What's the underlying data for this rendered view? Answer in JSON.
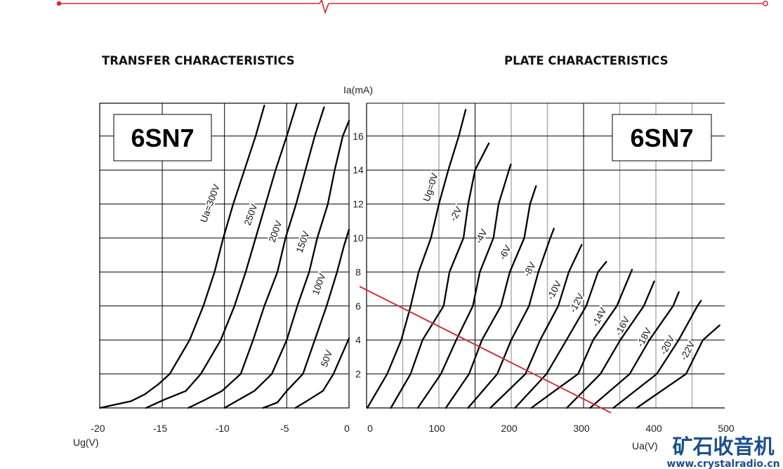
{
  "colors": {
    "accent_red": "#d8262e",
    "load_line": "#c8323a",
    "grid_black": "#000000",
    "grid_gray": "#a8a8a8",
    "watermark": "#1d4f8c"
  },
  "watermark": {
    "cn": "矿石收音机",
    "url": "www.crystalradio.cn"
  },
  "chart_data": [
    {
      "type": "line",
      "title": "TRANSFER CHARACTERISTICS",
      "badge": "6SN7",
      "xlabel": "Ug(V)",
      "ylabel": "Ia(mA)",
      "xlim": [
        -20,
        0
      ],
      "ylim": [
        0,
        18
      ],
      "xticks": [
        "-20",
        "-15",
        "-10",
        "-5",
        "0"
      ],
      "xtick_values": [
        -20,
        -15,
        -10,
        -5,
        0
      ],
      "grid": true,
      "series": [
        {
          "name": "Ua=300V",
          "points": [
            [
              -20,
              0
            ],
            [
              -17.5,
              0.4
            ],
            [
              -16.4,
              0.8
            ],
            [
              -15.3,
              1.4
            ],
            [
              -14.4,
              2
            ],
            [
              -12.8,
              4
            ],
            [
              -11.7,
              6
            ],
            [
              -10.8,
              8
            ],
            [
              -10.1,
              10
            ],
            [
              -9.3,
              12
            ],
            [
              -8.4,
              14
            ],
            [
              -7.5,
              16
            ],
            [
              -6.8,
              17.8
            ]
          ]
        },
        {
          "name": "250V",
          "points": [
            [
              -16.3,
              0
            ],
            [
              -14.8,
              0.5
            ],
            [
              -13.1,
              1
            ],
            [
              -11.9,
              2
            ],
            [
              -10.3,
              4
            ],
            [
              -9.2,
              6
            ],
            [
              -8.3,
              8
            ],
            [
              -7.5,
              10
            ],
            [
              -6.7,
              12
            ],
            [
              -5.9,
              14
            ],
            [
              -5.0,
              16
            ],
            [
              -4.2,
              17.9
            ]
          ]
        },
        {
          "name": "200V",
          "points": [
            [
              -12.9,
              0
            ],
            [
              -11.5,
              0.5
            ],
            [
              -10.2,
              1
            ],
            [
              -8.7,
              2
            ],
            [
              -7.7,
              4
            ],
            [
              -6.8,
              6
            ],
            [
              -5.75,
              8
            ],
            [
              -5.1,
              10
            ],
            [
              -4.25,
              12
            ],
            [
              -3.5,
              14
            ],
            [
              -2.75,
              16
            ],
            [
              -2.0,
              17.7
            ]
          ]
        },
        {
          "name": "150V",
          "points": [
            [
              -10.0,
              0
            ],
            [
              -8.8,
              0.5
            ],
            [
              -7.6,
              1
            ],
            [
              -6.2,
              2
            ],
            [
              -5.0,
              4
            ],
            [
              -4.15,
              6
            ],
            [
              -3.2,
              8
            ],
            [
              -2.55,
              10
            ],
            [
              -1.7,
              12
            ],
            [
              -1.15,
              14
            ],
            [
              -0.5,
              16
            ],
            [
              0,
              16.9
            ]
          ]
        },
        {
          "name": "100V",
          "points": [
            [
              -6.9,
              0
            ],
            [
              -5.75,
              0.32
            ],
            [
              -5.0,
              1
            ],
            [
              -3.7,
              2
            ],
            [
              -2.75,
              4
            ],
            [
              -1.8,
              6
            ],
            [
              -0.96,
              8
            ],
            [
              -0.4,
              9.55
            ],
            [
              0,
              10.5
            ]
          ]
        },
        {
          "name": "50V",
          "points": [
            [
              -4.3,
              0
            ],
            [
              -3.4,
              0.4
            ],
            [
              -2.1,
              1
            ],
            [
              -1.25,
              2
            ],
            [
              0,
              4.1
            ]
          ]
        }
      ]
    },
    {
      "type": "line",
      "title": "PLATE CHARACTERISTICS",
      "badge": "6SN7",
      "xlabel": "Ua(V)",
      "ylabel": "Ia(mA)",
      "xlim": [
        0,
        500
      ],
      "ylim": [
        0,
        18
      ],
      "xticks": [
        "0",
        "100",
        "200",
        "300",
        "400",
        "500"
      ],
      "xtick_values": [
        0,
        100,
        200,
        300,
        400,
        500
      ],
      "yticks": [
        "2",
        "4",
        "6",
        "8",
        "10",
        "12",
        "14",
        "16"
      ],
      "ytick_values": [
        2,
        4,
        6,
        8,
        10,
        12,
        14,
        16
      ],
      "grid": true,
      "series": [
        {
          "name": "Ug=0V",
          "points": [
            [
              1,
              0
            ],
            [
              28.5,
              2
            ],
            [
              48,
              4
            ],
            [
              61,
              6
            ],
            [
              72,
              8
            ],
            [
              89,
              10
            ],
            [
              100,
              12
            ],
            [
              113,
              14
            ],
            [
              127.5,
              16
            ],
            [
              137,
              17.55
            ]
          ]
        },
        {
          "name": "-2V",
          "points": [
            [
              33.6,
              0
            ],
            [
              60.8,
              2
            ],
            [
              77.4,
              4
            ],
            [
              106.5,
              6
            ],
            [
              114.6,
              8
            ],
            [
              134,
              10
            ],
            [
              140.5,
              12
            ],
            [
              150,
              14
            ],
            [
              169,
              15.57
            ]
          ]
        },
        {
          "name": "-4V",
          "points": [
            [
              70.8,
              0
            ],
            [
              102.8,
              2
            ],
            [
              124,
              4
            ],
            [
              147,
              6
            ],
            [
              156.6,
              8
            ],
            [
              175.4,
              10
            ],
            [
              182.5,
              12
            ],
            [
              199.3,
              14.33
            ]
          ]
        },
        {
          "name": "-6V",
          "points": [
            [
              109.6,
              0
            ],
            [
              141.7,
              2
            ],
            [
              159.5,
              4
            ],
            [
              185.8,
              6
            ],
            [
              198,
              8
            ],
            [
              218,
              10
            ],
            [
              226,
              12
            ],
            [
              234.3,
              13.06
            ]
          ]
        },
        {
          "name": "-8V",
          "points": [
            [
              140.3,
              0
            ],
            [
              180.7,
              2
            ],
            [
              200,
              4
            ],
            [
              224.6,
              6
            ],
            [
              237.5,
              8
            ],
            [
              254,
              10
            ],
            [
              259,
              10.55
            ]
          ]
        },
        {
          "name": "-10V",
          "points": [
            [
              171.1,
              0
            ],
            [
              219.7,
              2
            ],
            [
              240,
              4
            ],
            [
              265,
              6
            ],
            [
              279.6,
              8
            ],
            [
              297.4,
              9.6
            ]
          ]
        },
        {
          "name": "-12V",
          "points": [
            [
              205.2,
              0
            ],
            [
              248.8,
              2
            ],
            [
              276.4,
              4
            ],
            [
              303.7,
              6
            ],
            [
              320,
              8
            ],
            [
              331.4,
              8.6
            ]
          ]
        },
        {
          "name": "-14V",
          "points": [
            [
              227.8,
              0
            ],
            [
              260,
              1
            ],
            [
              292.5,
              2
            ],
            [
              313.3,
              4
            ],
            [
              346,
              6
            ],
            [
              367,
              8.14
            ]
          ]
        },
        {
          "name": "-16V",
          "points": [
            [
              276.8,
              0
            ],
            [
              323.3,
              2
            ],
            [
              350.8,
              4
            ],
            [
              383.3,
              6
            ],
            [
              397.7,
              7.45
            ]
          ]
        },
        {
          "name": "-18V",
          "points": [
            [
              309,
              0
            ],
            [
              363.8,
              2
            ],
            [
              391,
              4
            ],
            [
              423.8,
              6
            ],
            [
              431.7,
              6.82
            ]
          ]
        },
        {
          "name": "-20V",
          "points": [
            [
              341.2,
              0
            ],
            [
              401.2,
              2
            ],
            [
              431.5,
              4
            ],
            [
              457.4,
              6
            ],
            [
              462.4,
              6.31
            ]
          ]
        },
        {
          "name": "-22V",
          "points": [
            [
              373.5,
              0
            ],
            [
              441.7,
              2
            ],
            [
              465,
              4
            ],
            [
              488,
              4.86
            ]
          ]
        }
      ],
      "load_line": {
        "points": [
          [
            -9.7,
            7.15
          ],
          [
            337.9,
            -0.29
          ]
        ]
      }
    }
  ]
}
